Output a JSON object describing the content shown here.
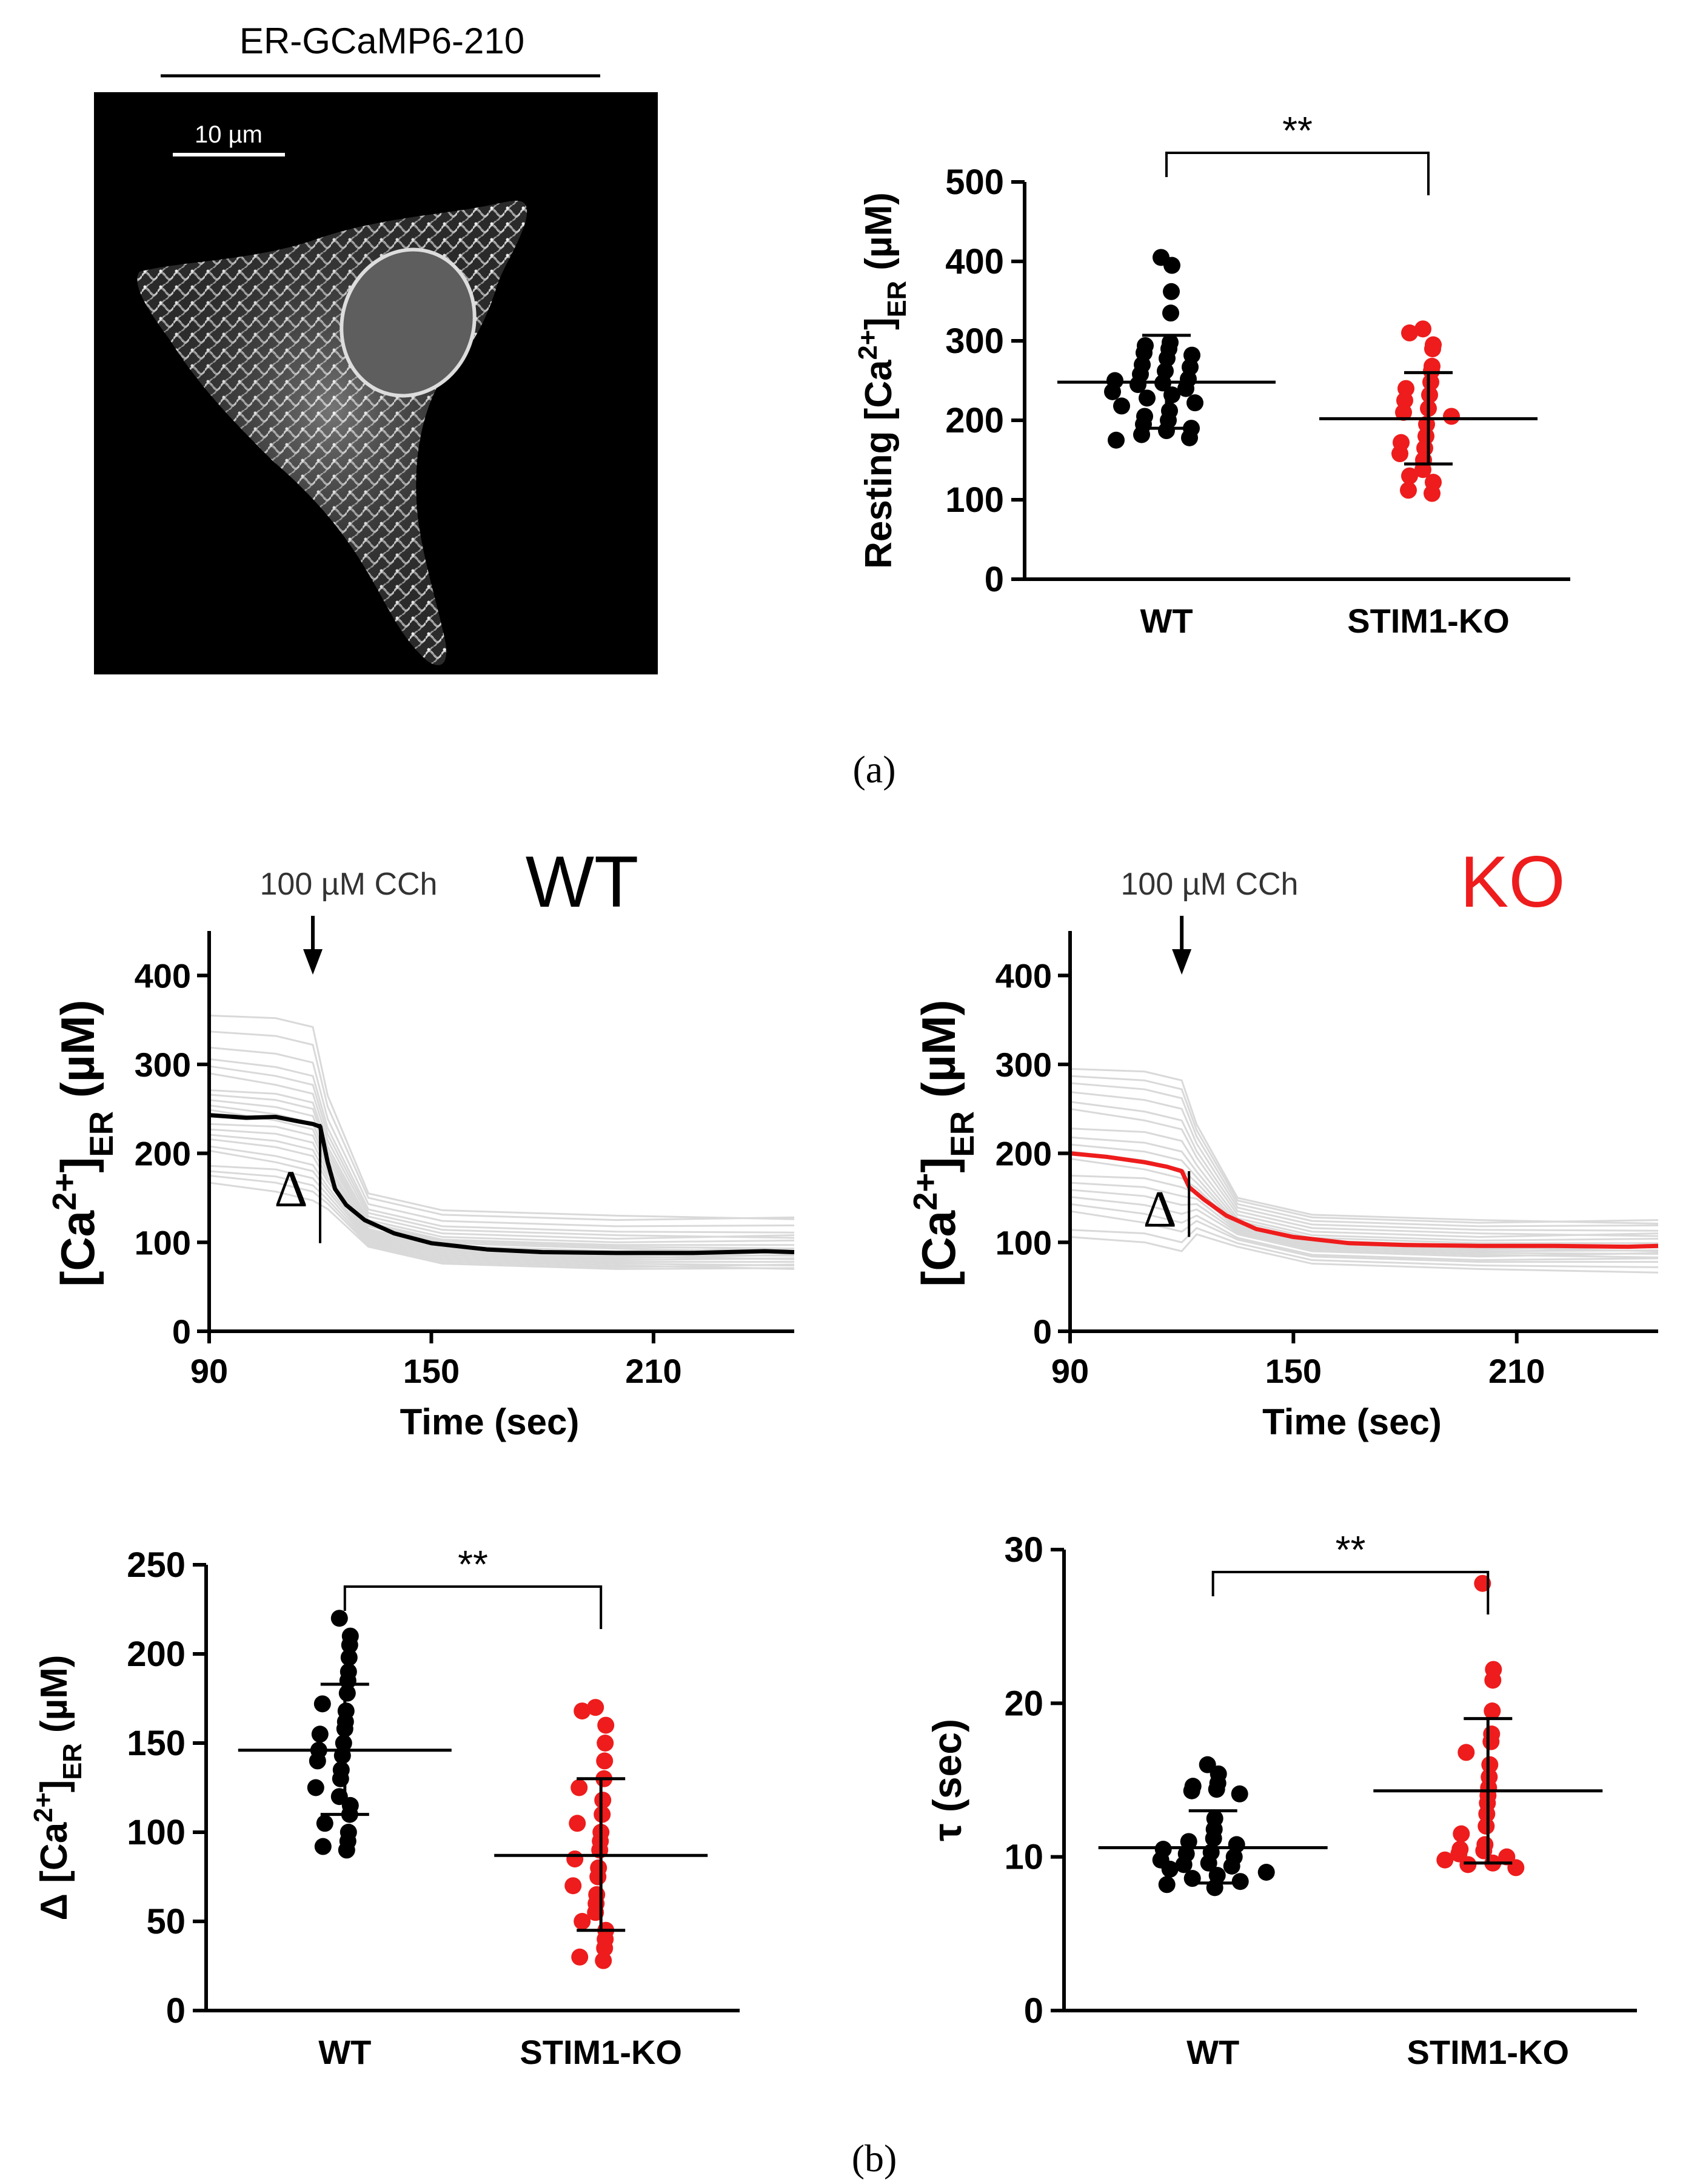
{
  "colors": {
    "wt": "#000000",
    "ko": "#ee1c1c",
    "trace_bg": "#d9d9d9",
    "micrograph_bg": "#000000"
  },
  "panel_labels": {
    "a": "(a)",
    "b": "(b)"
  },
  "micrograph": {
    "title": "ER-GCaMP6-210",
    "scale_bar_label": "10 µm"
  },
  "chart_data": [
    {
      "id": "resting",
      "type": "scatter",
      "title": "",
      "ylabel": {
        "prefix": "Resting [Ca",
        "sup": "2+",
        "close": "]",
        "sub": "ER",
        "unit": " (µM)"
      },
      "categories": [
        "WT",
        "STIM1-KO"
      ],
      "ylim": [
        0,
        500
      ],
      "yticks": [
        0,
        100,
        200,
        300,
        400,
        500
      ],
      "significance": "**",
      "series": [
        {
          "name": "WT",
          "color": "#000000",
          "mean": 248,
          "sd_low": 190,
          "sd_high": 307,
          "values": [
            405,
            395,
            362,
            335,
            298,
            294,
            290,
            285,
            282,
            278,
            270,
            267,
            262,
            258,
            252,
            250,
            247,
            245,
            240,
            236,
            232,
            228,
            222,
            218,
            212,
            205,
            200,
            195,
            190,
            187,
            182,
            178,
            175
          ]
        },
        {
          "name": "STIM1-KO",
          "color": "#ee1c1c",
          "mean": 202,
          "sd_low": 145,
          "sd_high": 260,
          "values": [
            315,
            310,
            295,
            290,
            268,
            262,
            248,
            240,
            232,
            225,
            215,
            210,
            205,
            195,
            180,
            172,
            165,
            158,
            150,
            138,
            130,
            122,
            112,
            108
          ]
        }
      ]
    },
    {
      "id": "trace_wt",
      "type": "line",
      "title": "WT",
      "annotation": "100 µM CCh",
      "delta_symbol": "Δ",
      "xlabel": "Time (sec)",
      "ylabel": {
        "prefix": "[Ca",
        "sup": "2+",
        "close": "]",
        "sub": "ER",
        "unit": " (µM)"
      },
      "xlim": [
        90,
        248
      ],
      "ylim": [
        0,
        450
      ],
      "xticks": [
        90,
        150,
        210
      ],
      "yticks": [
        0,
        100,
        200,
        300,
        400
      ],
      "stimulus_time": 118,
      "mean_color": "#000000",
      "mean_trace": [
        [
          90,
          243
        ],
        [
          100,
          240
        ],
        [
          108,
          241
        ],
        [
          114,
          236
        ],
        [
          118,
          233
        ],
        [
          120,
          230
        ],
        [
          122,
          190
        ],
        [
          124,
          160
        ],
        [
          127,
          142
        ],
        [
          132,
          125
        ],
        [
          140,
          110
        ],
        [
          150,
          99
        ],
        [
          165,
          92
        ],
        [
          180,
          89
        ],
        [
          200,
          88
        ],
        [
          220,
          88
        ],
        [
          240,
          90
        ],
        [
          248,
          89
        ]
      ],
      "background_traces": [
        {
          "pre": 360,
          "post": 130
        },
        {
          "pre": 340,
          "post": 125
        },
        {
          "pre": 320,
          "post": 118
        },
        {
          "pre": 305,
          "post": 112
        },
        {
          "pre": 295,
          "post": 108
        },
        {
          "pre": 285,
          "post": 104
        },
        {
          "pre": 275,
          "post": 100
        },
        {
          "pre": 268,
          "post": 97
        },
        {
          "pre": 260,
          "post": 95
        },
        {
          "pre": 252,
          "post": 93
        },
        {
          "pre": 245,
          "post": 90
        },
        {
          "pre": 238,
          "post": 88
        },
        {
          "pre": 230,
          "post": 86
        },
        {
          "pre": 222,
          "post": 84
        },
        {
          "pre": 215,
          "post": 82
        },
        {
          "pre": 205,
          "post": 80
        },
        {
          "pre": 198,
          "post": 78
        },
        {
          "pre": 190,
          "post": 76
        },
        {
          "pre": 182,
          "post": 74
        },
        {
          "pre": 175,
          "post": 72
        },
        {
          "pre": 165,
          "post": 70
        }
      ]
    },
    {
      "id": "trace_ko",
      "type": "line",
      "title": "KO",
      "annotation": "100 µM CCh",
      "delta_symbol": "Δ",
      "xlabel": "Time (sec)",
      "ylabel": {
        "prefix": "[Ca",
        "sup": "2+",
        "close": "]",
        "sub": "ER",
        "unit": " (µM)"
      },
      "xlim": [
        90,
        248
      ],
      "ylim": [
        0,
        450
      ],
      "xticks": [
        90,
        150,
        210
      ],
      "yticks": [
        0,
        100,
        200,
        300,
        400
      ],
      "stimulus_time": 120,
      "mean_color": "#ee1c1c",
      "mean_trace": [
        [
          90,
          200
        ],
        [
          100,
          196
        ],
        [
          110,
          190
        ],
        [
          116,
          185
        ],
        [
          120,
          180
        ],
        [
          122,
          162
        ],
        [
          126,
          148
        ],
        [
          132,
          130
        ],
        [
          140,
          115
        ],
        [
          150,
          106
        ],
        [
          165,
          99
        ],
        [
          180,
          97
        ],
        [
          200,
          96
        ],
        [
          220,
          96
        ],
        [
          240,
          95
        ],
        [
          248,
          96
        ]
      ],
      "background_traces": [
        {
          "pre": 300,
          "post": 125
        },
        {
          "pre": 290,
          "post": 122
        },
        {
          "pre": 280,
          "post": 118
        },
        {
          "pre": 268,
          "post": 114
        },
        {
          "pre": 255,
          "post": 110
        },
        {
          "pre": 245,
          "post": 106
        },
        {
          "pre": 232,
          "post": 102
        },
        {
          "pre": 220,
          "post": 99
        },
        {
          "pre": 210,
          "post": 96
        },
        {
          "pre": 200,
          "post": 94
        },
        {
          "pre": 190,
          "post": 92
        },
        {
          "pre": 180,
          "post": 90
        },
        {
          "pre": 170,
          "post": 88
        },
        {
          "pre": 160,
          "post": 86
        },
        {
          "pre": 150,
          "post": 84
        },
        {
          "pre": 140,
          "post": 80
        },
        {
          "pre": 130,
          "post": 78
        },
        {
          "pre": 118,
          "post": 74
        },
        {
          "pre": 108,
          "post": 70
        }
      ]
    },
    {
      "id": "delta",
      "type": "scatter",
      "title": "",
      "ylabel": {
        "prefix": "Δ [Ca",
        "sup": "2+",
        "close": "]",
        "sub": "ER",
        "unit": " (µM)"
      },
      "categories": [
        "WT",
        "STIM1-KO"
      ],
      "ylim": [
        0,
        250
      ],
      "yticks": [
        0,
        50,
        100,
        150,
        200,
        250
      ],
      "significance": "**",
      "series": [
        {
          "name": "WT",
          "color": "#000000",
          "mean": 146,
          "sd_low": 110,
          "sd_high": 183,
          "values": [
            220,
            210,
            205,
            198,
            190,
            185,
            178,
            172,
            168,
            162,
            158,
            155,
            150,
            146,
            143,
            140,
            135,
            130,
            125,
            120,
            115,
            110,
            105,
            100,
            95,
            92,
            90
          ]
        },
        {
          "name": "STIM1-KO",
          "color": "#ee1c1c",
          "mean": 87,
          "sd_low": 45,
          "sd_high": 130,
          "values": [
            170,
            168,
            160,
            150,
            140,
            130,
            125,
            118,
            110,
            105,
            100,
            95,
            90,
            85,
            80,
            75,
            70,
            65,
            60,
            55,
            50,
            45,
            40,
            35,
            30,
            28
          ]
        }
      ]
    },
    {
      "id": "tau",
      "type": "scatter",
      "title": "",
      "ylabel": {
        "prefix": "τ (sec)",
        "sup": "",
        "close": "",
        "sub": "",
        "unit": ""
      },
      "categories": [
        "WT",
        "STIM1-KO"
      ],
      "ylim": [
        0,
        30
      ],
      "yticks": [
        0,
        10,
        20,
        30
      ],
      "significance": "**",
      "series": [
        {
          "name": "WT",
          "color": "#000000",
          "mean": 10.6,
          "sd_low": 8.3,
          "sd_high": 13.0,
          "values": [
            16.0,
            15.4,
            14.8,
            14.6,
            14.4,
            14.3,
            14.1,
            12.5,
            11.8,
            11.2,
            10.8,
            10.5,
            10.2,
            10.0,
            9.8,
            9.6,
            9.4,
            9.2,
            9.0,
            8.8,
            8.6,
            8.4,
            8.2,
            8.0,
            9.5,
            10.3,
            11.0
          ]
        },
        {
          "name": "STIM1-KO",
          "color": "#ee1c1c",
          "mean": 14.3,
          "sd_low": 9.6,
          "sd_high": 19.0,
          "values": [
            27.8,
            22.2,
            21.5,
            19.5,
            18.0,
            17.5,
            16.8,
            16.0,
            15.2,
            14.5,
            14.0,
            13.5,
            12.8,
            12.0,
            11.5,
            10.8,
            10.5,
            10.2,
            10.0,
            9.8,
            9.5,
            9.3,
            9.6,
            10.4
          ]
        }
      ]
    }
  ]
}
